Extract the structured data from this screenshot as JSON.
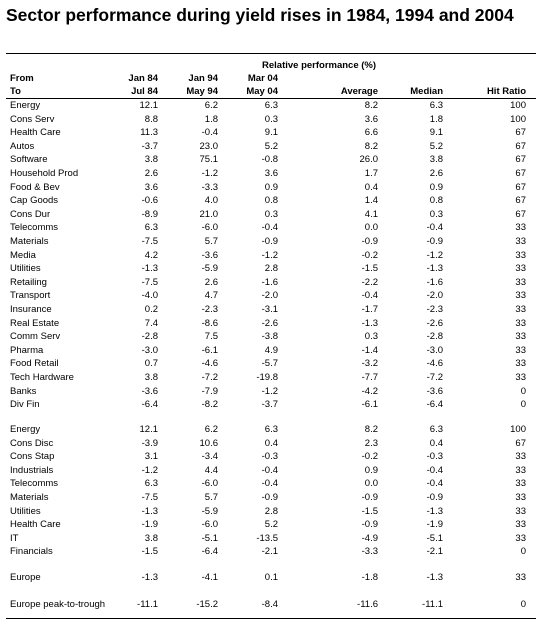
{
  "header": {
    "title": "Sector performance during yield rises in 1984, 1994 and 2004"
  },
  "table": {
    "group_header": "Relative performance (%)",
    "label_from": "From",
    "label_to": "To",
    "periods": [
      {
        "from": "Jan 84",
        "to": "Jul 84"
      },
      {
        "from": "Jan 94",
        "to": "May 94"
      },
      {
        "from": "Mar 04",
        "to": "May 04"
      }
    ],
    "summary_columns": [
      "Average",
      "Median",
      "Hit Ratio"
    ],
    "sections": [
      [
        [
          "Energy",
          "12.1",
          "6.2",
          "6.3",
          "8.2",
          "6.3",
          "100"
        ],
        [
          "Cons Serv",
          "8.8",
          "1.8",
          "0.3",
          "3.6",
          "1.8",
          "100"
        ],
        [
          "Health Care",
          "11.3",
          "-0.4",
          "9.1",
          "6.6",
          "9.1",
          "67"
        ],
        [
          "Autos",
          "-3.7",
          "23.0",
          "5.2",
          "8.2",
          "5.2",
          "67"
        ],
        [
          "Software",
          "3.8",
          "75.1",
          "-0.8",
          "26.0",
          "3.8",
          "67"
        ],
        [
          "Household Prod",
          "2.6",
          "-1.2",
          "3.6",
          "1.7",
          "2.6",
          "67"
        ],
        [
          "Food & Bev",
          "3.6",
          "-3.3",
          "0.9",
          "0.4",
          "0.9",
          "67"
        ],
        [
          "Cap Goods",
          "-0.6",
          "4.0",
          "0.8",
          "1.4",
          "0.8",
          "67"
        ],
        [
          "Cons Dur",
          "-8.9",
          "21.0",
          "0.3",
          "4.1",
          "0.3",
          "67"
        ],
        [
          "Telecomms",
          "6.3",
          "-6.0",
          "-0.4",
          "0.0",
          "-0.4",
          "33"
        ],
        [
          "Materials",
          "-7.5",
          "5.7",
          "-0.9",
          "-0.9",
          "-0.9",
          "33"
        ],
        [
          "Media",
          "4.2",
          "-3.6",
          "-1.2",
          "-0.2",
          "-1.2",
          "33"
        ],
        [
          "Utilities",
          "-1.3",
          "-5.9",
          "2.8",
          "-1.5",
          "-1.3",
          "33"
        ],
        [
          "Retailing",
          "-7.5",
          "2.6",
          "-1.6",
          "-2.2",
          "-1.6",
          "33"
        ],
        [
          "Transport",
          "-4.0",
          "4.7",
          "-2.0",
          "-0.4",
          "-2.0",
          "33"
        ],
        [
          "Insurance",
          "0.2",
          "-2.3",
          "-3.1",
          "-1.7",
          "-2.3",
          "33"
        ],
        [
          "Real Estate",
          "7.4",
          "-8.6",
          "-2.6",
          "-1.3",
          "-2.6",
          "33"
        ],
        [
          "Comm Serv",
          "-2.8",
          "7.5",
          "-3.8",
          "0.3",
          "-2.8",
          "33"
        ],
        [
          "Pharma",
          "-3.0",
          "-6.1",
          "4.9",
          "-1.4",
          "-3.0",
          "33"
        ],
        [
          "Food Retail",
          "0.7",
          "-4.6",
          "-5.7",
          "-3.2",
          "-4.6",
          "33"
        ],
        [
          "Tech Hardware",
          "3.8",
          "-7.2",
          "-19.8",
          "-7.7",
          "-7.2",
          "33"
        ],
        [
          "Banks",
          "-3.6",
          "-7.9",
          "-1.2",
          "-4.2",
          "-3.6",
          "0"
        ],
        [
          "Div Fin",
          "-6.4",
          "-8.2",
          "-3.7",
          "-6.1",
          "-6.4",
          "0"
        ]
      ],
      [
        [
          "Energy",
          "12.1",
          "6.2",
          "6.3",
          "8.2",
          "6.3",
          "100"
        ],
        [
          "Cons Disc",
          "-3.9",
          "10.6",
          "0.4",
          "2.3",
          "0.4",
          "67"
        ],
        [
          "Cons Stap",
          "3.1",
          "-3.4",
          "-0.3",
          "-0.2",
          "-0.3",
          "33"
        ],
        [
          "Industrials",
          "-1.2",
          "4.4",
          "-0.4",
          "0.9",
          "-0.4",
          "33"
        ],
        [
          "Telecomms",
          "6.3",
          "-6.0",
          "-0.4",
          "0.0",
          "-0.4",
          "33"
        ],
        [
          "Materials",
          "-7.5",
          "5.7",
          "-0.9",
          "-0.9",
          "-0.9",
          "33"
        ],
        [
          "Utilities",
          "-1.3",
          "-5.9",
          "2.8",
          "-1.5",
          "-1.3",
          "33"
        ],
        [
          "Health Care",
          "-1.9",
          "-6.0",
          "5.2",
          "-0.9",
          "-1.9",
          "33"
        ],
        [
          "IT",
          "3.8",
          "-5.1",
          "-13.5",
          "-4.9",
          "-5.1",
          "33"
        ],
        [
          "Financials",
          "-1.5",
          "-6.4",
          "-2.1",
          "-3.3",
          "-2.1",
          "0"
        ]
      ],
      [
        [
          "Europe",
          "-1.3",
          "-4.1",
          "0.1",
          "-1.8",
          "-1.3",
          "33"
        ]
      ],
      [
        [
          "Europe peak-to-trough",
          "-11.1",
          "-15.2",
          "-8.4",
          "-11.6",
          "-11.1",
          "0"
        ]
      ]
    ]
  }
}
